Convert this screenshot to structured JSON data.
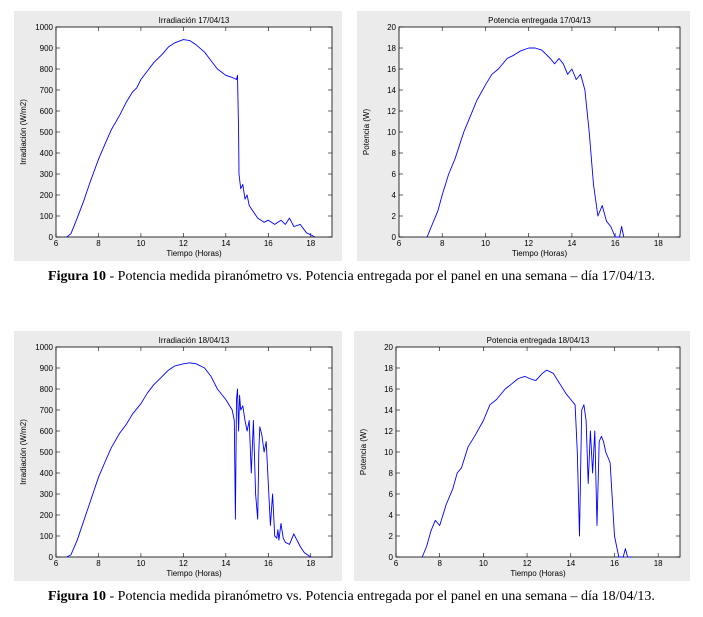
{
  "captions": [
    {
      "label": "Figura 10",
      "text": " - Potencia medida piranómetro vs. Potencia entregada por el panel en una semana – día 17/04/13."
    },
    {
      "label": "Figura 10",
      "text": " - Potencia medida piranómetro vs. Potencia entregada por el panel en una semana – día 18/04/13."
    }
  ],
  "chart_data": [
    {
      "type": "line",
      "title": "Irradiación 17/04/13",
      "xlabel": "Tiempo (Horas)",
      "ylabel": "Irradiación (W/m2)",
      "xlim": [
        6,
        19
      ],
      "ylim": [
        0,
        1000
      ],
      "xticks": [
        6,
        8,
        10,
        12,
        14,
        16,
        18
      ],
      "yticks": [
        0,
        100,
        200,
        300,
        400,
        500,
        600,
        700,
        800,
        900,
        1000
      ],
      "grid": false,
      "series": [
        {
          "x": [
            6.5,
            6.7,
            7.0,
            7.3,
            7.6,
            8.0,
            8.3,
            8.6,
            9.0,
            9.3,
            9.6,
            9.8,
            10.0,
            10.3,
            10.6,
            11.0,
            11.3,
            11.6,
            12.0,
            12.3,
            12.6,
            13.0,
            13.3,
            13.6,
            14.0,
            14.3,
            14.5,
            14.55,
            14.6,
            14.62,
            14.7,
            14.8,
            14.9,
            15.0,
            15.1,
            15.3,
            15.5,
            15.8,
            16.0,
            16.3,
            16.6,
            16.8,
            17.0,
            17.2,
            17.5,
            17.8,
            18.0,
            18.2
          ],
          "y": [
            0,
            15,
            90,
            170,
            260,
            370,
            440,
            510,
            580,
            640,
            690,
            710,
            750,
            790,
            830,
            870,
            905,
            925,
            940,
            935,
            915,
            880,
            840,
            800,
            770,
            760,
            750,
            770,
            500,
            300,
            230,
            250,
            180,
            200,
            150,
            120,
            90,
            70,
            80,
            60,
            80,
            60,
            90,
            50,
            60,
            20,
            10,
            0
          ]
        }
      ]
    },
    {
      "type": "line",
      "title": "Potencia entregada 17/04/13",
      "xlabel": "Tiempo (Horas)",
      "ylabel": "Potencia (W)",
      "xlim": [
        6,
        19
      ],
      "ylim": [
        0,
        20
      ],
      "xticks": [
        6,
        8,
        10,
        12,
        14,
        16,
        18
      ],
      "yticks": [
        0,
        2,
        4,
        6,
        8,
        10,
        12,
        14,
        16,
        18,
        20
      ],
      "grid": false,
      "series": [
        {
          "x": [
            7.3,
            7.5,
            7.8,
            8.0,
            8.3,
            8.6,
            9.0,
            9.3,
            9.6,
            10.0,
            10.3,
            10.6,
            11.0,
            11.3,
            11.6,
            12.0,
            12.3,
            12.6,
            13.0,
            13.2,
            13.4,
            13.6,
            13.8,
            14.0,
            14.2,
            14.4,
            14.6,
            14.8,
            15.0,
            15.2,
            15.4,
            15.6,
            15.8,
            16.0,
            16.2,
            16.3,
            16.4
          ],
          "y": [
            0,
            1,
            2.5,
            4,
            6,
            7.5,
            10,
            11.5,
            13,
            14.5,
            15.5,
            16,
            17,
            17.3,
            17.7,
            18,
            18,
            17.8,
            17,
            16.5,
            17,
            16.5,
            15.5,
            16,
            15,
            15.5,
            14,
            10,
            5,
            2,
            3,
            1.5,
            1,
            0,
            0,
            1,
            0
          ]
        }
      ]
    },
    {
      "type": "line",
      "title": "Irradiación 18/04/13",
      "xlabel": "Tiempo (Horas)",
      "ylabel": "Irradiación (W/m2)",
      "xlim": [
        6,
        19
      ],
      "ylim": [
        0,
        1000
      ],
      "xticks": [
        6,
        8,
        10,
        12,
        14,
        16,
        18
      ],
      "yticks": [
        0,
        100,
        200,
        300,
        400,
        500,
        600,
        700,
        800,
        900,
        1000
      ],
      "grid": false,
      "series": [
        {
          "x": [
            6.5,
            6.7,
            7.0,
            7.3,
            7.6,
            8.0,
            8.3,
            8.6,
            9.0,
            9.3,
            9.6,
            10.0,
            10.3,
            10.6,
            11.0,
            11.3,
            11.6,
            12.0,
            12.3,
            12.6,
            13.0,
            13.3,
            13.6,
            14.0,
            14.3,
            14.4,
            14.45,
            14.5,
            14.55,
            14.6,
            14.65,
            14.7,
            14.8,
            14.9,
            15.0,
            15.1,
            15.2,
            15.3,
            15.4,
            15.5,
            15.55,
            15.6,
            15.7,
            15.8,
            15.9,
            16.0,
            16.1,
            16.2,
            16.3,
            16.4,
            16.45,
            16.5,
            16.6,
            16.7,
            16.8,
            17.0,
            17.2,
            17.5,
            17.7,
            18.0
          ],
          "y": [
            0,
            10,
            80,
            170,
            260,
            380,
            450,
            520,
            590,
            630,
            680,
            730,
            780,
            820,
            860,
            890,
            910,
            920,
            925,
            920,
            900,
            860,
            800,
            750,
            700,
            650,
            180,
            750,
            800,
            600,
            770,
            700,
            720,
            650,
            600,
            650,
            400,
            650,
            300,
            180,
            500,
            620,
            580,
            500,
            550,
            350,
            150,
            300,
            100,
            90,
            130,
            80,
            160,
            90,
            70,
            60,
            110,
            50,
            20,
            0
          ]
        }
      ]
    },
    {
      "type": "line",
      "title": "Potencia entregada 18/04/13",
      "xlabel": "Tiempo (Horas)",
      "ylabel": "Potencia (W)",
      "xlim": [
        6,
        19
      ],
      "ylim": [
        0,
        20
      ],
      "xticks": [
        6,
        8,
        10,
        12,
        14,
        16,
        18
      ],
      "yticks": [
        0,
        2,
        4,
        6,
        8,
        10,
        12,
        14,
        16,
        18,
        20
      ],
      "grid": false,
      "series": [
        {
          "x": [
            7.2,
            7.4,
            7.6,
            7.8,
            8.0,
            8.3,
            8.6,
            8.8,
            9.0,
            9.3,
            9.6,
            10.0,
            10.3,
            10.6,
            11.0,
            11.3,
            11.6,
            11.9,
            12.1,
            12.4,
            12.7,
            12.9,
            13.2,
            13.5,
            13.8,
            14.0,
            14.2,
            14.3,
            14.4,
            14.5,
            14.6,
            14.7,
            14.8,
            14.9,
            15.0,
            15.1,
            15.2,
            15.3,
            15.4,
            15.5,
            15.6,
            15.8,
            16.0,
            16.2,
            16.4,
            16.5,
            16.6,
            16.7,
            16.8
          ],
          "y": [
            0,
            1,
            2.5,
            3.5,
            3,
            5,
            6.5,
            8,
            8.5,
            10.5,
            11.5,
            13,
            14.5,
            15,
            16,
            16.5,
            17,
            17.2,
            17,
            16.8,
            17.5,
            17.8,
            17.5,
            16.5,
            15.5,
            15,
            14.5,
            10,
            2,
            14,
            14.5,
            13,
            7,
            12,
            8,
            12,
            3,
            11,
            11.5,
            11,
            10,
            9,
            2,
            0,
            0,
            0.8,
            0,
            0,
            0
          ]
        }
      ]
    }
  ]
}
